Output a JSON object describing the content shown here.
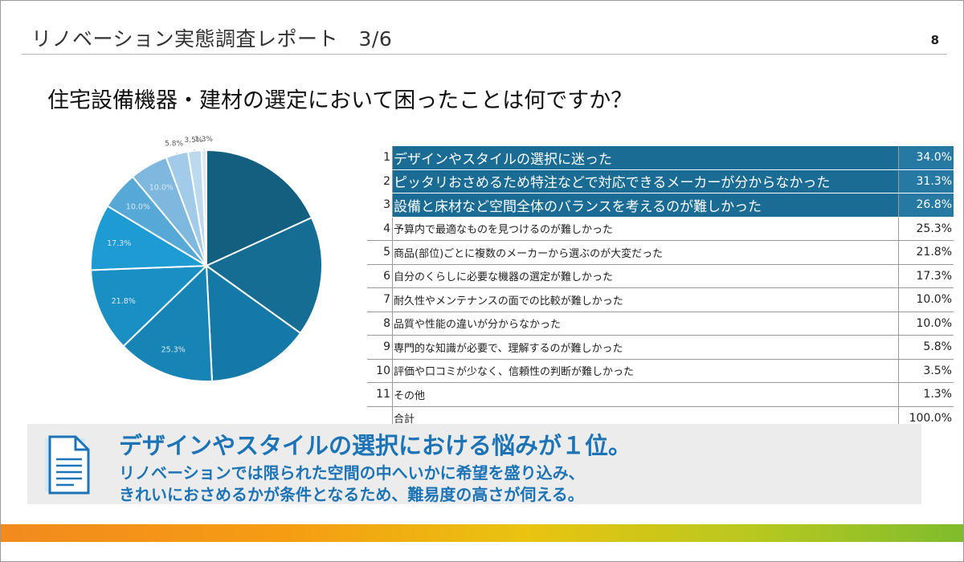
{
  "header": {
    "title": "リノベーション実態調査レポート　3/6",
    "page_number": "8"
  },
  "question": "住宅設備機器・建材の選定において困ったことは何ですか？",
  "chart_data": {
    "type": "pie",
    "labels": [
      "デザインやスタイルの選択に迷った",
      "ピッタリおさめるため特注などで対応できるメーカーが分からなかった",
      "設備と床材など空間全体のバランスを考えるのが難しかった",
      "予算内で最適なものを見つけるのが難しかった",
      "商品(部位)ごとに複数のメーカーから選ぶのが大変だった",
      "自分のくらしに必要な機器の選定が難しかった",
      "耐久性やメンテナンスの面での比較が難しかった",
      "品質や性能の違いが分からなかった",
      "専門的な知識が必要で、理解するのが難しかった",
      "評価や口コミが少なく、信頼性の判断が難しかった",
      "その他"
    ],
    "values": [
      34.0,
      31.3,
      26.8,
      25.3,
      21.8,
      17.3,
      10.0,
      10.0,
      5.8,
      3.5,
      1.3
    ],
    "slice_labels": [
      "",
      "",
      "",
      "25.3%",
      "21.8%",
      "17.3%",
      "10.0%",
      "10.0%",
      "5.8%",
      "3.5%",
      "1.3%"
    ],
    "colors": [
      "#135f80",
      "#166d94",
      "#1479a6",
      "#1684b5",
      "#1a8fc3",
      "#1e9bd2",
      "#56a8d7",
      "#7eb8df",
      "#a1cbe8",
      "#bcd9ee",
      "#d9e9f6"
    ]
  },
  "table": {
    "rows": [
      {
        "rank": "1",
        "label": "デザインやスタイルの選択に迷った",
        "pct": "34.0%",
        "highlight": true
      },
      {
        "rank": "2",
        "label": "ピッタリおさめるため特注などで対応できるメーカーが分からなかった",
        "pct": "31.3%",
        "highlight": true
      },
      {
        "rank": "3",
        "label": "設備と床材など空間全体のバランスを考えるのが難しかった",
        "pct": "26.8%",
        "highlight": true
      },
      {
        "rank": "4",
        "label": "予算内で最適なものを見つけるのが難しかった",
        "pct": "25.3%"
      },
      {
        "rank": "5",
        "label": "商品(部位)ごとに複数のメーカーから選ぶのが大変だった",
        "pct": "21.8%"
      },
      {
        "rank": "6",
        "label": "自分のくらしに必要な機器の選定が難しかった",
        "pct": "17.3%"
      },
      {
        "rank": "7",
        "label": "耐久性やメンテナンスの面での比較が難しかった",
        "pct": "10.0%"
      },
      {
        "rank": "8",
        "label": "品質や性能の違いが分からなかった",
        "pct": "10.0%"
      },
      {
        "rank": "9",
        "label": "専門的な知識が必要で、理解するのが難しかった",
        "pct": "5.8%"
      },
      {
        "rank": "10",
        "label": "評価や口コミが少なく、信頼性の判断が難しかった",
        "pct": "3.5%"
      },
      {
        "rank": "11",
        "label": "その他",
        "pct": "1.3%"
      }
    ],
    "total_label": "合計",
    "total_pct": "100.0%"
  },
  "summary": {
    "headline": "デザインやスタイルの選択における悩みが１位。",
    "line1": "リノベーションでは限られた空間の中へいかに希望を盛り込み、",
    "line2": "きれいにおさめるかが条件となるため、難易度の高さが伺える。",
    "icon": "document-icon"
  }
}
